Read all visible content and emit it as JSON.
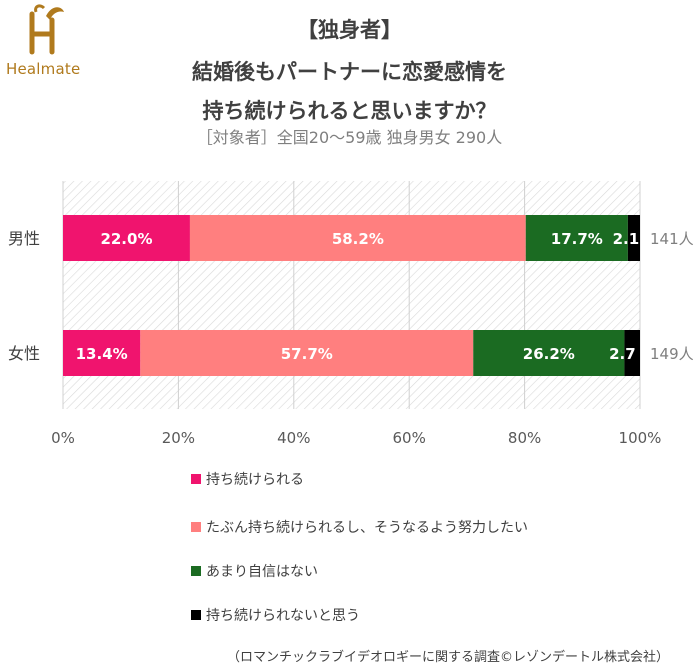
{
  "brand": {
    "logo_text": "Healmate"
  },
  "title_lines": [
    "【独身者】",
    "結婚後もパートナーに恋愛感情を",
    "持ち続けられると思いますか？"
  ],
  "subtitle": "［対象者］全国20～59歳 独身男女 290人",
  "source": "（ロマンチックラブイデオロギーに関する調査©レゾンデートル株式会社）",
  "chart_data": {
    "type": "bar",
    "orientation": "horizontal",
    "stacked": true,
    "categories": [
      "男性",
      "女性"
    ],
    "sample_sizes": [
      "141人",
      "149人"
    ],
    "series": [
      {
        "name": "持ち続けられる",
        "color": "#f0146e",
        "values": [
          22.0,
          13.4
        ],
        "labels": [
          "22.0%",
          "13.4%"
        ]
      },
      {
        "name": "たぶん持ち続けられるし、そうなるよう努力したい",
        "color": "#ff7f7f",
        "values": [
          58.2,
          57.7
        ],
        "labels": [
          "58.2%",
          "57.7%"
        ]
      },
      {
        "name": "あまり自信はない",
        "color": "#1b6b22",
        "values": [
          17.7,
          26.2
        ],
        "labels": [
          "17.7%",
          "26.2%"
        ]
      },
      {
        "name": "持ち続けられないと思う",
        "color": "#000000",
        "values": [
          2.1,
          2.7
        ],
        "labels": [
          "2.1",
          "2.7"
        ]
      }
    ],
    "xlim": [
      0,
      100
    ],
    "xticks": [
      "0%",
      "20%",
      "40%",
      "60%",
      "80%",
      "100%"
    ],
    "grid": true,
    "legend_position": "bottom"
  }
}
